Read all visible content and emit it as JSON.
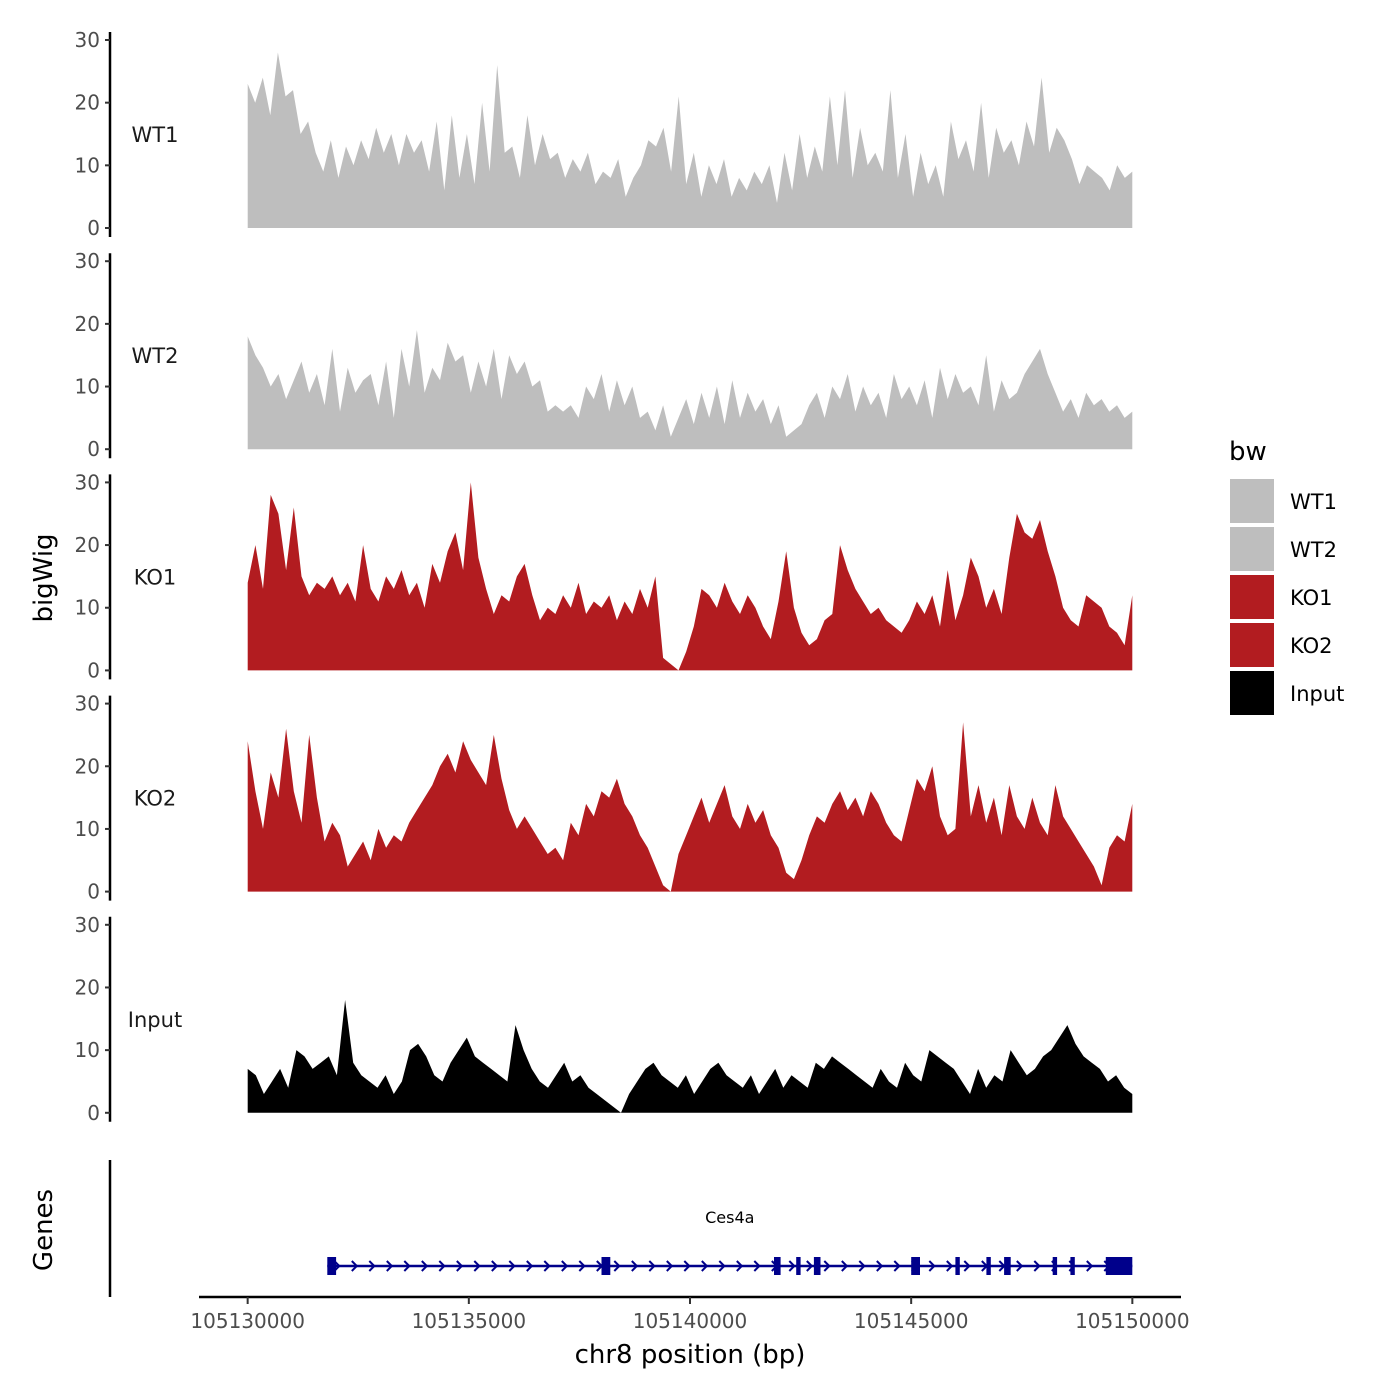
{
  "chart_data": {
    "type": "area",
    "xlabel": "chr8 position (bp)",
    "ylabel": "bigWig",
    "genes_label": "Genes",
    "xlim": [
      105128900,
      105151100
    ],
    "ylim": [
      0,
      30
    ],
    "x_ticks": [
      105130000,
      105135000,
      105140000,
      105145000,
      105150000
    ],
    "x_tick_labels": [
      "105130000",
      "105135000",
      "105140000",
      "105145000",
      "105150000"
    ],
    "y_ticks": [
      0,
      10,
      20,
      30
    ],
    "y_tick_labels": [
      "0",
      "10",
      "20",
      "30"
    ],
    "legend": {
      "title": "bw",
      "entries": [
        {
          "label": "WT1",
          "color": "#bebebe"
        },
        {
          "label": "WT2",
          "color": "#bebebe"
        },
        {
          "label": "KO1",
          "color": "#b21c20"
        },
        {
          "label": "KO2",
          "color": "#b21c20"
        },
        {
          "label": "Input",
          "color": "#000000"
        }
      ]
    },
    "track_start": 105130000,
    "track_end": 105150000,
    "series": [
      {
        "name": "WT1",
        "color": "#bebebe",
        "values": [
          23,
          20,
          24,
          18,
          28,
          21,
          22,
          15,
          17,
          12,
          9,
          14,
          8,
          13,
          10,
          14,
          11,
          16,
          12,
          15,
          10,
          15,
          12,
          14,
          9,
          17,
          6,
          18,
          8,
          15,
          7,
          20,
          9,
          26,
          12,
          13,
          8,
          18,
          10,
          15,
          11,
          12,
          8,
          11,
          9,
          12,
          7,
          9,
          8,
          11,
          5,
          8,
          10,
          14,
          13,
          16,
          9,
          21,
          7,
          12,
          5,
          10,
          7,
          11,
          5,
          8,
          6,
          9,
          7,
          10,
          4,
          12,
          6,
          15,
          8,
          13,
          9,
          21,
          10,
          22,
          8,
          16,
          10,
          12,
          9,
          22,
          8,
          15,
          5,
          12,
          7,
          10,
          5,
          17,
          11,
          14,
          9,
          20,
          8,
          16,
          12,
          14,
          10,
          17,
          13,
          24,
          12,
          16,
          14,
          11,
          7,
          10,
          9,
          8,
          6,
          10,
          8,
          9
        ]
      },
      {
        "name": "WT2",
        "color": "#bebebe",
        "values": [
          18,
          15,
          13,
          10,
          12,
          8,
          11,
          14,
          9,
          12,
          7,
          16,
          6,
          13,
          9,
          11,
          12,
          7,
          14,
          5,
          16,
          10,
          19,
          9,
          13,
          11,
          17,
          14,
          15,
          9,
          14,
          10,
          16,
          8,
          15,
          12,
          14,
          10,
          11,
          6,
          7,
          6,
          7,
          5,
          10,
          8,
          12,
          6,
          11,
          7,
          10,
          5,
          6,
          3,
          7,
          2,
          5,
          8,
          4,
          9,
          5,
          10,
          4,
          11,
          5,
          9,
          6,
          8,
          4,
          7,
          2,
          3,
          4,
          7,
          9,
          5,
          10,
          8,
          12,
          6,
          10,
          7,
          9,
          5,
          12,
          8,
          10,
          7,
          11,
          5,
          13,
          8,
          12,
          9,
          10,
          7,
          15,
          6,
          11,
          8,
          9,
          12,
          14,
          16,
          12,
          9,
          6,
          8,
          5,
          9,
          7,
          8,
          6,
          7,
          5,
          6
        ]
      },
      {
        "name": "KO1",
        "color": "#b21c20",
        "values": [
          14,
          20,
          13,
          28,
          25,
          16,
          26,
          15,
          12,
          14,
          13,
          15,
          12,
          14,
          11,
          20,
          13,
          11,
          15,
          13,
          16,
          12,
          14,
          10,
          17,
          14,
          19,
          22,
          16,
          30,
          18,
          13,
          9,
          12,
          11,
          15,
          17,
          12,
          8,
          10,
          9,
          12,
          10,
          14,
          9,
          11,
          10,
          12,
          8,
          11,
          9,
          13,
          10,
          15,
          2,
          1,
          0,
          3,
          7,
          13,
          12,
          10,
          14,
          11,
          9,
          12,
          10,
          7,
          5,
          11,
          19,
          10,
          6,
          4,
          5,
          8,
          9,
          20,
          16,
          13,
          11,
          9,
          10,
          8,
          7,
          6,
          8,
          11,
          9,
          12,
          7,
          16,
          8,
          12,
          18,
          15,
          10,
          13,
          9,
          18,
          25,
          22,
          21,
          24,
          19,
          15,
          10,
          8,
          7,
          12,
          11,
          10,
          7,
          6,
          4,
          12
        ]
      },
      {
        "name": "KO2",
        "color": "#b21c20",
        "values": [
          24,
          16,
          10,
          19,
          15,
          26,
          16,
          11,
          25,
          15,
          8,
          11,
          9,
          4,
          6,
          8,
          5,
          10,
          7,
          9,
          8,
          11,
          13,
          15,
          17,
          20,
          22,
          19,
          24,
          21,
          19,
          17,
          25,
          18,
          13,
          10,
          12,
          10,
          8,
          6,
          7,
          5,
          11,
          9,
          14,
          12,
          16,
          15,
          18,
          14,
          12,
          9,
          7,
          4,
          1,
          0,
          6,
          9,
          12,
          15,
          11,
          14,
          17,
          12,
          10,
          14,
          11,
          13,
          9,
          7,
          3,
          2,
          5,
          9,
          12,
          11,
          14,
          16,
          13,
          15,
          12,
          16,
          14,
          11,
          9,
          8,
          13,
          18,
          16,
          20,
          12,
          9,
          10,
          27,
          12,
          17,
          11,
          15,
          9,
          17,
          12,
          10,
          15,
          11,
          9,
          17,
          12,
          10,
          8,
          6,
          4,
          1,
          7,
          9,
          8,
          14
        ]
      },
      {
        "name": "Input",
        "color": "#000000",
        "values": [
          7,
          6,
          3,
          5,
          7,
          4,
          10,
          9,
          7,
          8,
          9,
          6,
          18,
          8,
          6,
          5,
          4,
          6,
          3,
          5,
          10,
          11,
          9,
          6,
          5,
          8,
          10,
          12,
          9,
          8,
          7,
          6,
          5,
          14,
          10,
          7,
          5,
          4,
          6,
          8,
          5,
          6,
          4,
          3,
          2,
          1,
          0,
          3,
          5,
          7,
          8,
          6,
          5,
          4,
          6,
          3,
          5,
          7,
          8,
          6,
          5,
          4,
          6,
          3,
          5,
          7,
          4,
          6,
          5,
          4,
          8,
          7,
          9,
          8,
          7,
          6,
          5,
          4,
          7,
          5,
          4,
          8,
          6,
          5,
          10,
          9,
          8,
          7,
          5,
          3,
          7,
          4,
          6,
          5,
          10,
          8,
          6,
          7,
          9,
          10,
          12,
          14,
          11,
          9,
          8,
          7,
          5,
          6,
          4,
          3
        ]
      }
    ],
    "genes": [
      {
        "name": "Ces4a",
        "strand": "+",
        "start": 105131800,
        "end": 105150000,
        "exons": [
          [
            105131800,
            105132000
          ],
          [
            105138000,
            105138200
          ],
          [
            105141900,
            105142050
          ],
          [
            105142400,
            105142500
          ],
          [
            105142800,
            105142950
          ],
          [
            105145000,
            105145200
          ],
          [
            105146000,
            105146100
          ],
          [
            105146700,
            105146800
          ],
          [
            105147100,
            105147250
          ],
          [
            105148200,
            105148300
          ],
          [
            105148600,
            105148700
          ],
          [
            105149400,
            105150000
          ]
        ]
      }
    ]
  }
}
